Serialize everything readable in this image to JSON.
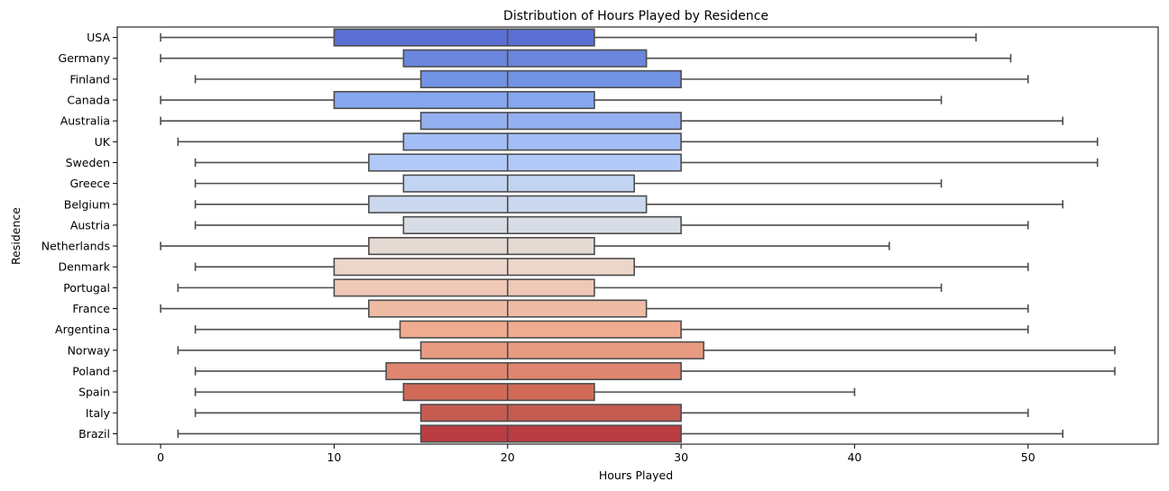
{
  "chart_data": {
    "type": "boxplot",
    "orientation": "horizontal",
    "title": "Distribution of Hours Played by Residence",
    "xlabel": "Hours Played",
    "ylabel": "Residence",
    "xlim": [
      -2.5,
      57.5
    ],
    "xticks": [
      0,
      10,
      20,
      30,
      40,
      50
    ],
    "grid": false,
    "legend": "none",
    "palette": "coolwarm",
    "box_edge_color": "#4d4d4d",
    "categories": [
      "USA",
      "Germany",
      "Finland",
      "Canada",
      "Australia",
      "UK",
      "Sweden",
      "Greece",
      "Belgium",
      "Austria",
      "Netherlands",
      "Denmark",
      "Portugal",
      "France",
      "Argentina",
      "Norway",
      "Poland",
      "Spain",
      "Italy",
      "Brazil"
    ],
    "boxes": [
      {
        "category": "USA",
        "whisker_low": 0,
        "q1": 10,
        "median": 20,
        "q3": 25,
        "whisker_high": 47,
        "color": "#5a6fd1"
      },
      {
        "category": "Germany",
        "whisker_low": 0,
        "q1": 14,
        "median": 20,
        "q3": 28,
        "whisker_high": 49,
        "color": "#6b86dd"
      },
      {
        "category": "Finland",
        "whisker_low": 2,
        "q1": 15,
        "median": 20,
        "q3": 30,
        "whisker_high": 50,
        "color": "#7394e4"
      },
      {
        "category": "Canada",
        "whisker_low": 0,
        "q1": 10,
        "median": 20,
        "q3": 25,
        "whisker_high": 45,
        "color": "#86a6ee"
      },
      {
        "category": "Australia",
        "whisker_low": 0,
        "q1": 15,
        "median": 20,
        "q3": 30,
        "whisker_high": 52,
        "color": "#95b0f0"
      },
      {
        "category": "UK",
        "whisker_low": 1,
        "q1": 14,
        "median": 20,
        "q3": 30,
        "whisker_high": 54,
        "color": "#a3bef6"
      },
      {
        "category": "Sweden",
        "whisker_low": 2,
        "q1": 12,
        "median": 20,
        "q3": 30,
        "whisker_high": 54,
        "color": "#b2caf8"
      },
      {
        "category": "Greece",
        "whisker_low": 2,
        "q1": 14,
        "median": 20,
        "q3": 27.3,
        "whisker_high": 45,
        "color": "#c2d4f2"
      },
      {
        "category": "Belgium",
        "whisker_low": 2,
        "q1": 12,
        "median": 20,
        "q3": 28,
        "whisker_high": 52,
        "color": "#ccd8ee"
      },
      {
        "category": "Austria",
        "whisker_low": 2,
        "q1": 14,
        "median": 20,
        "q3": 30,
        "whisker_high": 50,
        "color": "#d8dce5"
      },
      {
        "category": "Netherlands",
        "whisker_low": 0,
        "q1": 12,
        "median": 20,
        "q3": 25,
        "whisker_high": 42,
        "color": "#e4d9d3"
      },
      {
        "category": "Denmark",
        "whisker_low": 2,
        "q1": 10,
        "median": 20,
        "q3": 27.3,
        "whisker_high": 50,
        "color": "#ecd6cb"
      },
      {
        "category": "Portugal",
        "whisker_low": 1,
        "q1": 10,
        "median": 20,
        "q3": 25,
        "whisker_high": 45,
        "color": "#efc8b6"
      },
      {
        "category": "France",
        "whisker_low": 0,
        "q1": 12,
        "median": 20,
        "q3": 28,
        "whisker_high": 50,
        "color": "#eebca5"
      },
      {
        "category": "Argentina",
        "whisker_low": 2,
        "q1": 13.8,
        "median": 20,
        "q3": 30,
        "whisker_high": 50,
        "color": "#f0ac90"
      },
      {
        "category": "Norway",
        "whisker_low": 1,
        "q1": 15,
        "median": 20,
        "q3": 31.3,
        "whisker_high": 55,
        "color": "#e89b80"
      },
      {
        "category": "Poland",
        "whisker_low": 2,
        "q1": 13,
        "median": 20,
        "q3": 30,
        "whisker_high": 55,
        "color": "#df8670"
      },
      {
        "category": "Spain",
        "whisker_low": 2,
        "q1": 14,
        "median": 20,
        "q3": 25,
        "whisker_high": 40,
        "color": "#d16b58"
      },
      {
        "category": "Italy",
        "whisker_low": 2,
        "q1": 15,
        "median": 20,
        "q3": 30,
        "whisker_high": 50,
        "color": "#c65b52"
      },
      {
        "category": "Brazil",
        "whisker_low": 1,
        "q1": 15,
        "median": 20,
        "q3": 30,
        "whisker_high": 52,
        "color": "#bb3c43"
      }
    ]
  }
}
